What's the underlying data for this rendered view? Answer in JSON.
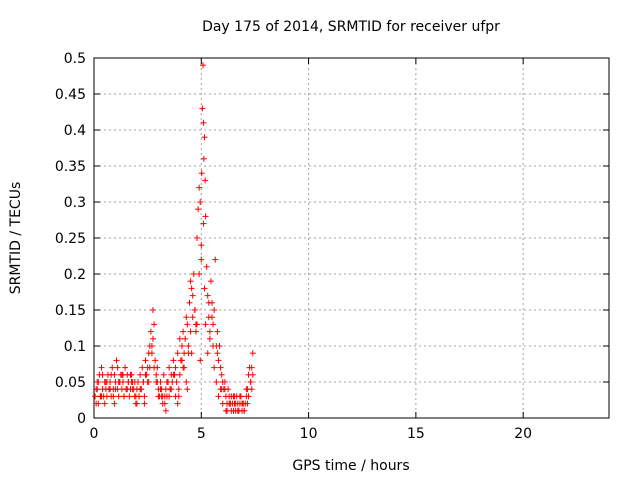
{
  "chart_data": {
    "type": "scatter",
    "title": "Day 175 of 2014, SRMTID for receiver ufpr",
    "xlabel": "GPS time / hours",
    "ylabel": "SRMTID / TECUs",
    "xlim": [
      0,
      24
    ],
    "ylim": [
      0,
      0.5
    ],
    "xticks": [
      0,
      5,
      10,
      15,
      20
    ],
    "xtick_labels": [
      "0",
      "5",
      "10",
      "15",
      "20"
    ],
    "yticks": [
      0,
      0.05,
      0.1,
      0.15,
      0.2,
      0.25,
      0.3,
      0.35,
      0.4,
      0.45,
      0.5
    ],
    "ytick_labels": [
      "0",
      "0.05",
      "0.1",
      "0.15",
      "0.2",
      "0.25",
      "0.3",
      "0.35",
      "0.4",
      "0.45",
      "0.5"
    ],
    "grid": true,
    "marker": "+",
    "marker_color": "#ff0000",
    "series": [
      {
        "x": [
          0.05,
          0.1,
          0.15,
          0.2,
          0.25,
          0.3,
          0.35,
          0.4,
          0.45,
          0.5,
          0.55,
          0.6,
          0.65,
          0.7,
          0.75,
          0.8,
          0.85,
          0.9,
          0.95,
          1.0,
          1.05,
          1.1,
          1.15,
          1.2,
          1.25,
          1.3,
          1.35,
          1.4,
          1.45,
          1.5,
          1.55,
          1.6,
          1.65,
          1.7,
          1.75,
          1.8,
          1.85,
          1.9,
          1.95,
          2.0,
          2.05,
          2.1,
          2.15,
          2.2,
          2.25,
          2.3,
          2.35,
          2.4,
          2.45,
          2.5,
          2.55,
          2.6,
          2.65,
          2.7,
          2.75,
          2.8,
          2.85,
          2.9,
          2.95,
          3.0,
          3.05,
          3.1,
          3.15,
          3.2,
          3.25,
          3.3,
          3.35,
          3.4,
          3.45,
          3.5,
          3.55,
          3.6,
          3.65,
          3.7,
          3.75,
          3.8,
          3.85,
          3.9,
          3.95,
          4.0,
          4.05,
          4.1,
          4.15,
          4.2,
          4.25,
          4.3,
          4.35,
          4.4,
          4.45,
          4.5,
          4.55,
          4.6,
          4.65,
          4.7,
          4.75,
          4.8,
          4.85,
          4.9,
          4.95,
          5.0,
          5.02,
          5.05,
          5.08,
          5.1,
          5.12,
          5.15,
          5.18,
          5.2,
          5.25,
          5.3,
          5.35,
          5.4,
          5.45,
          5.5,
          5.55,
          5.6,
          5.65,
          5.7,
          5.75,
          5.8,
          5.85,
          5.9,
          5.95,
          6.0,
          6.05,
          6.1,
          6.15,
          6.2,
          6.25,
          6.3,
          6.35,
          6.4,
          6.45,
          6.5,
          6.55,
          6.6,
          6.65,
          6.7,
          6.75,
          6.8,
          6.85,
          6.9,
          6.95,
          7.0,
          7.05,
          7.1,
          7.15,
          7.2,
          7.25,
          7.3,
          7.35,
          7.4,
          0.1,
          0.2,
          0.3,
          0.4,
          0.5,
          0.6,
          0.7,
          0.8,
          0.9,
          1.0,
          1.1,
          1.2,
          1.3,
          1.4,
          1.5,
          1.6,
          1.7,
          1.8,
          1.9,
          2.0,
          2.1,
          2.2,
          2.3,
          2.4,
          2.5,
          2.6,
          2.7,
          2.8,
          2.9,
          3.0,
          3.1,
          3.2,
          3.3,
          3.4,
          3.5,
          3.6,
          3.7,
          3.8,
          3.9,
          4.0,
          4.1,
          4.2,
          4.3,
          4.4,
          4.5,
          4.6,
          4.7,
          4.8,
          4.9,
          5.0,
          5.1,
          5.2,
          5.3,
          5.4,
          5.5,
          5.6,
          5.7,
          5.8,
          5.9,
          6.0,
          6.1,
          6.2,
          6.3,
          6.4,
          6.5,
          6.6,
          6.7,
          6.8,
          6.9,
          7.0,
          7.1,
          7.2,
          7.3,
          7.4,
          0.15,
          0.35,
          0.55,
          0.75,
          0.95,
          1.15,
          1.35,
          1.55,
          1.75,
          1.95,
          2.15,
          2.35,
          2.55,
          2.75,
          2.95,
          3.15,
          3.35,
          3.55,
          3.75,
          3.95,
          4.15,
          4.35,
          4.55,
          4.75,
          4.95,
          5.15,
          5.35,
          5.55,
          5.75,
          5.95,
          6.15,
          6.35,
          6.55,
          6.75,
          6.95,
          7.15,
          7.35
        ],
        "y": [
          0.03,
          0.04,
          0.05,
          0.02,
          0.06,
          0.03,
          0.07,
          0.04,
          0.03,
          0.05,
          0.04,
          0.03,
          0.06,
          0.04,
          0.05,
          0.03,
          0.07,
          0.04,
          0.06,
          0.05,
          0.08,
          0.04,
          0.03,
          0.05,
          0.06,
          0.04,
          0.05,
          0.03,
          0.07,
          0.04,
          0.06,
          0.05,
          0.03,
          0.04,
          0.06,
          0.05,
          0.04,
          0.03,
          0.02,
          0.04,
          0.05,
          0.03,
          0.06,
          0.04,
          0.07,
          0.05,
          0.03,
          0.08,
          0.06,
          0.05,
          0.09,
          0.07,
          0.12,
          0.1,
          0.15,
          0.13,
          0.08,
          0.06,
          0.05,
          0.04,
          0.03,
          0.05,
          0.04,
          0.03,
          0.06,
          0.02,
          0.04,
          0.03,
          0.05,
          0.07,
          0.04,
          0.06,
          0.05,
          0.08,
          0.06,
          0.03,
          0.05,
          0.02,
          0.04,
          0.06,
          0.08,
          0.1,
          0.12,
          0.09,
          0.11,
          0.14,
          0.13,
          0.1,
          0.16,
          0.19,
          0.18,
          0.17,
          0.2,
          0.15,
          0.12,
          0.25,
          0.29,
          0.32,
          0.3,
          0.22,
          0.34,
          0.43,
          0.49,
          0.41,
          0.36,
          0.39,
          0.33,
          0.28,
          0.21,
          0.17,
          0.14,
          0.12,
          0.19,
          0.16,
          0.13,
          0.15,
          0.22,
          0.1,
          0.12,
          0.08,
          0.1,
          0.07,
          0.06,
          0.05,
          0.04,
          0.05,
          0.03,
          0.02,
          0.04,
          0.03,
          0.02,
          0.01,
          0.02,
          0.03,
          0.02,
          0.01,
          0.03,
          0.02,
          0.01,
          0.02,
          0.03,
          0.01,
          0.02,
          0.01,
          0.02,
          0.03,
          0.04,
          0.06,
          0.07,
          0.05,
          0.07,
          0.09,
          0.02,
          0.05,
          0.03,
          0.06,
          0.02,
          0.05,
          0.04,
          0.06,
          0.03,
          0.04,
          0.07,
          0.05,
          0.06,
          0.03,
          0.04,
          0.05,
          0.06,
          0.04,
          0.05,
          0.02,
          0.03,
          0.04,
          0.05,
          0.06,
          0.07,
          0.1,
          0.09,
          0.07,
          0.05,
          0.03,
          0.04,
          0.02,
          0.03,
          0.05,
          0.03,
          0.04,
          0.06,
          0.07,
          0.09,
          0.11,
          0.08,
          0.07,
          0.05,
          0.09,
          0.12,
          0.14,
          0.15,
          0.13,
          0.2,
          0.24,
          0.27,
          0.13,
          0.09,
          0.11,
          0.14,
          0.07,
          0.05,
          0.03,
          0.04,
          0.02,
          0.04,
          0.01,
          0.02,
          0.03,
          0.01,
          0.02,
          0.01,
          0.03,
          0.02,
          0.01,
          0.04,
          0.03,
          0.05,
          0.06,
          0.04,
          0.03,
          0.05,
          0.04,
          0.02,
          0.05,
          0.06,
          0.04,
          0.05,
          0.03,
          0.04,
          0.02,
          0.05,
          0.11,
          0.07,
          0.03,
          0.01,
          0.04,
          0.06,
          0.03,
          0.07,
          0.04,
          0.09,
          0.13,
          0.08,
          0.18,
          0.16,
          0.1,
          0.09,
          0.04,
          0.01,
          0.02,
          0.03,
          0.01,
          0.02,
          0.02,
          0.04
        ]
      }
    ]
  }
}
